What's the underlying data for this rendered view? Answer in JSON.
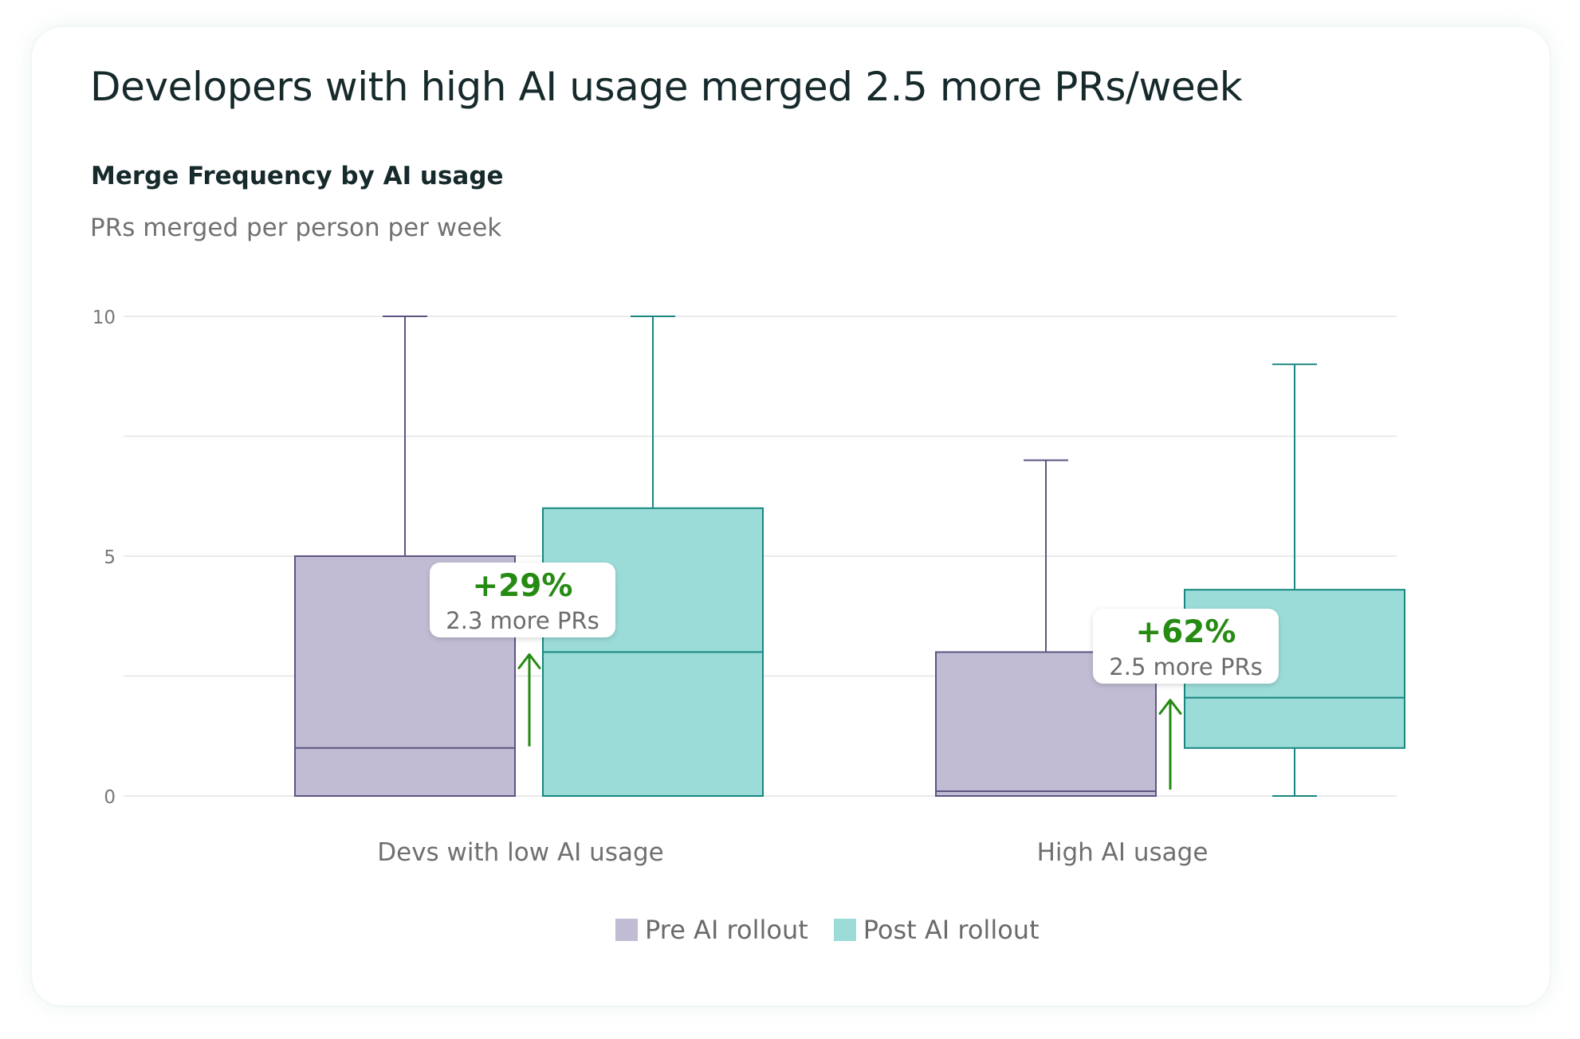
{
  "headline": "Developers with high AI usage merged 2.5 more PRs/week",
  "colors": {
    "pre_fill": "#c1bcd3",
    "pre_stroke": "#5e5483",
    "post_fill": "#9bdcd9",
    "post_stroke": "#188780",
    "annotation_green": "#268b13",
    "gridline": "#e4e4e4",
    "tick_text": "#777777"
  },
  "chart_data": {
    "type": "boxplot",
    "title": "Merge Frequency by AI usage",
    "ylabel": "PRs merged per person per week",
    "ylim": [
      0,
      10
    ],
    "yticks": [
      "0",
      "5",
      "10"
    ],
    "gridlines": [
      0,
      2.5,
      5,
      7.5,
      10
    ],
    "categories": [
      "Devs with low AI usage",
      "High AI usage"
    ],
    "series": [
      {
        "name": "Pre AI rollout",
        "boxes": [
          {
            "whisker_low": 0,
            "q1": 0,
            "median": 1,
            "q3": 5,
            "whisker_high": 10
          },
          {
            "whisker_low": 0,
            "q1": 0,
            "median": 0.1,
            "q3": 3,
            "whisker_high": 7
          }
        ]
      },
      {
        "name": "Post AI rollout",
        "boxes": [
          {
            "whisker_low": 0,
            "q1": 0,
            "median": 3,
            "q3": 6,
            "whisker_high": 10
          },
          {
            "whisker_low": 0,
            "q1": 1,
            "median": 2.05,
            "q3": 4.3,
            "whisker_high": 9
          }
        ]
      }
    ],
    "annotations": [
      {
        "pct": "+29%",
        "text": "2.3 more PRs",
        "arrow_from": 1,
        "arrow_to": 3
      },
      {
        "pct": "+62%",
        "text": "2.5 more PRs",
        "arrow_from": 0.1,
        "arrow_to": 2.05
      }
    ],
    "legend": [
      "Pre AI rollout",
      "Post AI rollout"
    ],
    "legend_position": "bottom-center"
  }
}
